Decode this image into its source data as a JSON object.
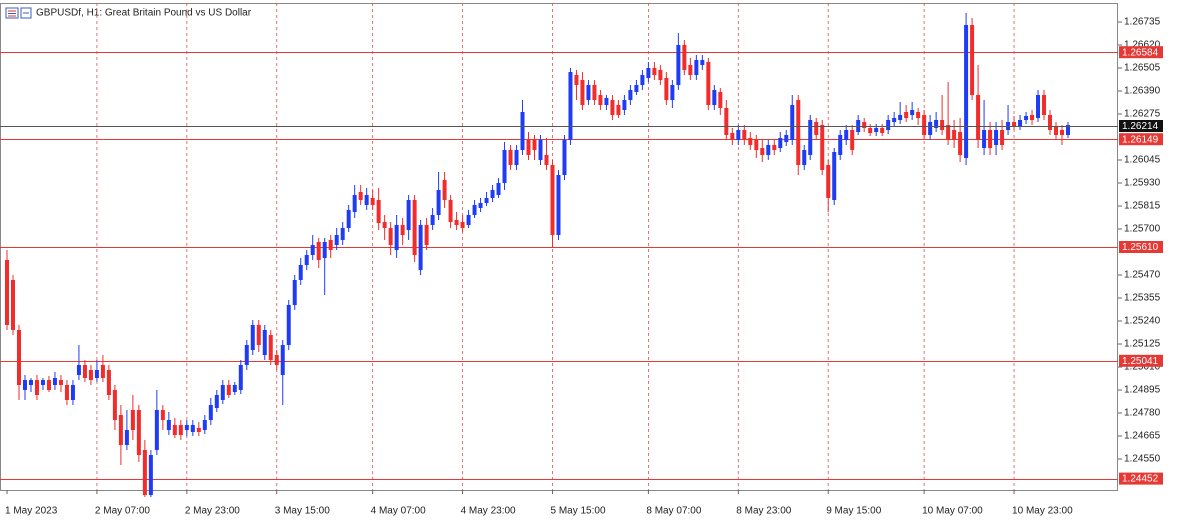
{
  "chart_data": {
    "type": "candlestick",
    "title": "GBPUSDf, H1:  Great Britain Pound vs US Dollar",
    "up_color": "#1f3cf5",
    "down_color": "#f22b2b",
    "level_color": "#e53935",
    "grid": true,
    "ylim": [
      1.24395,
      1.2683
    ],
    "yticks": [
      1.26735,
      {
        "value": 1.2662,
        "label": "1.26620"
      },
      1.26505,
      {
        "value": 1.2639,
        "label": "1.26390"
      },
      1.26275,
      1.26045,
      {
        "value": 1.2593,
        "label": "1.25930"
      },
      1.25815,
      {
        "value": 1.257,
        "label": "1.25700"
      },
      {
        "value": 1.2547,
        "label": "1.25470"
      },
      1.25355,
      {
        "value": 1.2524,
        "label": "1.25240"
      },
      1.25125,
      {
        "value": 1.2501,
        "label": "1.25010"
      },
      1.24895,
      {
        "value": 1.2478,
        "label": "1.24780"
      },
      1.24665,
      {
        "value": 1.2455,
        "label": "1.24550"
      }
    ],
    "levels": [
      1.26584,
      1.26149,
      {
        "value": 1.2561,
        "label": "1.25610"
      },
      1.25041,
      1.24452
    ],
    "last_price": 1.26214,
    "categories": [
      "1 May 2023",
      null,
      null,
      null,
      null,
      null,
      null,
      null,
      null,
      null,
      null,
      null,
      null,
      null,
      null,
      "2 May 07:00",
      null,
      null,
      null,
      null,
      null,
      null,
      null,
      null,
      null,
      null,
      null,
      null,
      null,
      null,
      "2 May 23:00",
      null,
      null,
      null,
      null,
      null,
      null,
      null,
      null,
      null,
      null,
      null,
      null,
      null,
      null,
      "3 May 15:00",
      null,
      null,
      null,
      null,
      null,
      null,
      null,
      null,
      null,
      null,
      null,
      null,
      null,
      null,
      null,
      "4 May 07:00",
      null,
      null,
      null,
      null,
      null,
      null,
      null,
      null,
      null,
      null,
      null,
      null,
      null,
      null,
      "4 May 23:00",
      null,
      null,
      null,
      null,
      null,
      null,
      null,
      null,
      null,
      null,
      null,
      null,
      null,
      null,
      "5 May 15:00",
      null,
      null,
      null,
      null,
      null,
      null,
      null,
      null,
      null,
      null,
      null,
      null,
      null,
      null,
      null,
      "8 May 07:00",
      null,
      null,
      null,
      null,
      null,
      null,
      null,
      null,
      null,
      null,
      null,
      null,
      null,
      null,
      "8 May 23:00",
      null,
      null,
      null,
      null,
      null,
      null,
      null,
      null,
      null,
      null,
      null,
      null,
      null,
      null,
      "9 May 15:00",
      null,
      null,
      null,
      null,
      null,
      null,
      null,
      null,
      null,
      null,
      null,
      null,
      null,
      null,
      null,
      "10 May 07:00",
      null,
      null,
      null,
      null,
      null,
      null,
      null,
      null,
      null,
      null,
      null,
      null,
      null,
      null,
      "10 May 23:00",
      null,
      null,
      null,
      null,
      null,
      null,
      null,
      null,
      null
    ],
    "values": [
      [
        1.25545,
        1.25595,
        1.25195,
        1.2522
      ],
      [
        1.25445,
        1.2547,
        1.2517,
        1.25195
      ],
      [
        1.25195,
        1.2522,
        1.24845,
        1.2492
      ],
      [
        1.24895,
        1.2497,
        1.24845,
        1.24945
      ],
      [
        1.2492,
        1.24955,
        1.24885,
        1.24945
      ],
      [
        1.24945,
        1.2497,
        1.24845,
        1.2487
      ],
      [
        1.2492,
        1.24955,
        1.24895,
        1.24945
      ],
      [
        1.24945,
        1.24965,
        1.24885,
        1.24895
      ],
      [
        1.2492,
        1.24985,
        1.24895,
        1.24955
      ],
      [
        1.24945,
        1.2497,
        1.24885,
        1.2492
      ],
      [
        1.2492,
        1.24945,
        1.2482,
        1.24845
      ],
      [
        1.24845,
        1.24945,
        1.2482,
        1.2492
      ],
      [
        1.2497,
        1.2512,
        1.24945,
        1.2502
      ],
      [
        1.2502,
        1.25045,
        1.24935,
        1.24955
      ],
      [
        1.24995,
        1.2502,
        1.2492,
        1.24945
      ],
      [
        1.24955,
        1.25045,
        1.24935,
        1.24995
      ],
      [
        1.2502,
        1.2507,
        1.24935,
        1.24955
      ],
      [
        1.24995,
        1.2502,
        1.24845,
        1.2487
      ],
      [
        1.24895,
        1.2492,
        1.24695,
        1.24745
      ],
      [
        1.2477,
        1.2482,
        1.2452,
        1.2462
      ],
      [
        1.2462,
        1.24795,
        1.24595,
        1.24695
      ],
      [
        1.24795,
        1.2487,
        1.24645,
        1.24695
      ],
      [
        1.24795,
        1.2482,
        1.24535,
        1.2457
      ],
      [
        1.24595,
        1.24645,
        1.2436,
        1.2437
      ],
      [
        1.2437,
        1.24595,
        1.2436,
        1.2457
      ],
      [
        1.24595,
        1.24895,
        1.2457,
        1.24795
      ],
      [
        1.24795,
        1.2482,
        1.24695,
        1.24745
      ],
      [
        1.24695,
        1.24785,
        1.2467,
        1.24745
      ],
      [
        1.2472,
        1.24755,
        1.24655,
        1.2467
      ],
      [
        1.2472,
        1.24745,
        1.24645,
        1.2467
      ],
      [
        1.24695,
        1.24745,
        1.24665,
        1.2472
      ],
      [
        1.24685,
        1.24745,
        1.24665,
        1.2472
      ],
      [
        1.24705,
        1.24735,
        1.24665,
        1.24685
      ],
      [
        1.24695,
        1.2477,
        1.24675,
        1.24745
      ],
      [
        1.24745,
        1.24855,
        1.2472,
        1.2482
      ],
      [
        1.24805,
        1.24895,
        1.24785,
        1.2487
      ],
      [
        1.24845,
        1.24945,
        1.24825,
        1.2492
      ],
      [
        1.2492,
        1.24945,
        1.24855,
        1.2487
      ],
      [
        1.24885,
        1.24935,
        1.2487,
        1.2492
      ],
      [
        1.24895,
        1.25045,
        1.24875,
        1.2502
      ],
      [
        1.2502,
        1.25145,
        1.24995,
        1.2512
      ],
      [
        1.25095,
        1.25245,
        1.2507,
        1.2522
      ],
      [
        1.2522,
        1.25245,
        1.25085,
        1.2512
      ],
      [
        1.2507,
        1.2522,
        1.25045,
        1.25195
      ],
      [
        1.2517,
        1.25195,
        1.2502,
        1.25045
      ],
      [
        1.2507,
        1.25095,
        1.24995,
        1.2502
      ],
      [
        1.2497,
        1.25145,
        1.2482,
        1.2512
      ],
      [
        1.2512,
        1.25345,
        1.25095,
        1.2532
      ],
      [
        1.2532,
        1.2547,
        1.25295,
        1.25445
      ],
      [
        1.25445,
        1.25555,
        1.2542,
        1.2552
      ],
      [
        1.2552,
        1.25595,
        1.25495,
        1.2557
      ],
      [
        1.2557,
        1.2567,
        1.25545,
        1.2562
      ],
      [
        1.25635,
        1.25655,
        1.25505,
        1.25545
      ],
      [
        1.25555,
        1.25655,
        1.2537,
        1.25635
      ],
      [
        1.25645,
        1.2567,
        1.25555,
        1.25595
      ],
      [
        1.2562,
        1.25705,
        1.25595,
        1.2567
      ],
      [
        1.25645,
        1.25735,
        1.2562,
        1.25705
      ],
      [
        1.25705,
        1.2582,
        1.25685,
        1.25795
      ],
      [
        1.25785,
        1.2592,
        1.25755,
        1.2587
      ],
      [
        1.25885,
        1.2592,
        1.2582,
        1.25845
      ],
      [
        1.2582,
        1.25905,
        1.25795,
        1.2587
      ],
      [
        1.25855,
        1.25895,
        1.25795,
        1.2582
      ],
      [
        1.25845,
        1.25905,
        1.25695,
        1.2573
      ],
      [
        1.25735,
        1.2577,
        1.25645,
        1.25705
      ],
      [
        1.25705,
        1.25735,
        1.2557,
        1.2562
      ],
      [
        1.25595,
        1.2577,
        1.25555,
        1.2572
      ],
      [
        1.2572,
        1.25755,
        1.2562,
        1.2567
      ],
      [
        1.25695,
        1.2587,
        1.25645,
        1.25845
      ],
      [
        1.25845,
        1.2587,
        1.25535,
        1.2557
      ],
      [
        1.25495,
        1.25745,
        1.2547,
        1.2572
      ],
      [
        1.2572,
        1.25755,
        1.25595,
        1.2562
      ],
      [
        1.2572,
        1.25805,
        1.25695,
        1.2577
      ],
      [
        1.2577,
        1.25985,
        1.25745,
        1.25895
      ],
      [
        1.25945,
        1.25985,
        1.25805,
        1.25845
      ],
      [
        1.25845,
        1.2587,
        1.25705,
        1.25735
      ],
      [
        1.25745,
        1.25785,
        1.25695,
        1.2572
      ],
      [
        1.25735,
        1.2577,
        1.25685,
        1.25705
      ],
      [
        1.2572,
        1.25795,
        1.25705,
        1.2577
      ],
      [
        1.2577,
        1.25845,
        1.25755,
        1.2582
      ],
      [
        1.25805,
        1.25855,
        1.25785,
        1.2583
      ],
      [
        1.2583,
        1.25885,
        1.25815,
        1.25855
      ],
      [
        1.25855,
        1.2592,
        1.25835,
        1.25895
      ],
      [
        1.2587,
        1.25955,
        1.25855,
        1.2593
      ],
      [
        1.2593,
        1.26135,
        1.25895,
        1.26095
      ],
      [
        1.26095,
        1.2612,
        1.25995,
        1.2602
      ],
      [
        1.2602,
        1.2612,
        1.25995,
        1.26095
      ],
      [
        1.26095,
        1.26345,
        1.2607,
        1.26285
      ],
      [
        1.26145,
        1.26185,
        1.26045,
        1.2607
      ],
      [
        1.26145,
        1.2617,
        1.26045,
        1.26095
      ],
      [
        1.26045,
        1.2617,
        1.2602,
        1.26145
      ],
      [
        1.2607,
        1.26155,
        1.25995,
        1.2602
      ],
      [
        1.2602,
        1.26045,
        1.25605,
        1.2567
      ],
      [
        1.2567,
        1.25995,
        1.25645,
        1.2597
      ],
      [
        1.2597,
        1.2617,
        1.25945,
        1.26145
      ],
      [
        1.26145,
        1.26505,
        1.2612,
        1.26485
      ],
      [
        1.2647,
        1.26495,
        1.26345,
        1.2642
      ],
      [
        1.26445,
        1.26485,
        1.26295,
        1.2632
      ],
      [
        1.26345,
        1.26445,
        1.2632,
        1.2642
      ],
      [
        1.2642,
        1.26445,
        1.2632,
        1.26345
      ],
      [
        1.2637,
        1.26395,
        1.26295,
        1.2632
      ],
      [
        1.2632,
        1.2637,
        1.26295,
        1.26355
      ],
      [
        1.26345,
        1.2637,
        1.26245,
        1.2627
      ],
      [
        1.2632,
        1.26345,
        1.26255,
        1.2627
      ],
      [
        1.26295,
        1.2637,
        1.2627,
        1.26345
      ],
      [
        1.26345,
        1.2642,
        1.2632,
        1.26395
      ],
      [
        1.26385,
        1.26445,
        1.2637,
        1.2642
      ],
      [
        1.2642,
        1.26495,
        1.26395,
        1.2647
      ],
      [
        1.26455,
        1.26535,
        1.26435,
        1.26505
      ],
      [
        1.26505,
        1.26535,
        1.26445,
        1.2647
      ],
      [
        1.26495,
        1.2652,
        1.2642,
        1.26445
      ],
      [
        1.26455,
        1.26485,
        1.2632,
        1.26345
      ],
      [
        1.26345,
        1.26445,
        1.26305,
        1.2642
      ],
      [
        1.2642,
        1.2668,
        1.26395,
        1.2662
      ],
      [
        1.2662,
        1.26645,
        1.2647,
        1.26495
      ],
      [
        1.2652,
        1.26555,
        1.26445,
        1.2647
      ],
      [
        1.2647,
        1.2657,
        1.26445,
        1.26545
      ],
      [
        1.2652,
        1.2657,
        1.26495,
        1.26545
      ],
      [
        1.26535,
        1.26555,
        1.26295,
        1.2632
      ],
      [
        1.2632,
        1.2642,
        1.26295,
        1.26395
      ],
      [
        1.26385,
        1.26405,
        1.2627,
        1.26305
      ],
      [
        1.26305,
        1.26345,
        1.26145,
        1.2617
      ],
      [
        1.2618,
        1.26205,
        1.2612,
        1.26145
      ],
      [
        1.26145,
        1.2622,
        1.2612,
        1.26195
      ],
      [
        1.26195,
        1.2622,
        1.2612,
        1.26145
      ],
      [
        1.26155,
        1.26185,
        1.26095,
        1.2612
      ],
      [
        1.26145,
        1.2617,
        1.26055,
        1.26095
      ],
      [
        1.26105,
        1.26145,
        1.26035,
        1.2607
      ],
      [
        1.2607,
        1.26145,
        1.26045,
        1.2612
      ],
      [
        1.2612,
        1.26145,
        1.2607,
        1.26095
      ],
      [
        1.26105,
        1.26185,
        1.26085,
        1.26155
      ],
      [
        1.26135,
        1.26195,
        1.26115,
        1.2617
      ],
      [
        1.26145,
        1.2637,
        1.2612,
        1.2632
      ],
      [
        1.26345,
        1.2637,
        1.2597,
        1.2602
      ],
      [
        1.2602,
        1.2612,
        1.25995,
        1.26095
      ],
      [
        1.2607,
        1.2627,
        1.26045,
        1.26245
      ],
      [
        1.26235,
        1.26255,
        1.26145,
        1.2617
      ],
      [
        1.2622,
        1.26245,
        1.2597,
        1.25995
      ],
      [
        1.2602,
        1.26045,
        1.25785,
        1.25855
      ],
      [
        1.25845,
        1.26105,
        1.2582,
        1.26085
      ],
      [
        1.2607,
        1.26195,
        1.26045,
        1.2617
      ],
      [
        1.26145,
        1.2622,
        1.2612,
        1.26195
      ],
      [
        1.26195,
        1.2622,
        1.2607,
        1.26095
      ],
      [
        1.26185,
        1.2627,
        1.2617,
        1.26245
      ],
      [
        1.26235,
        1.26255,
        1.26185,
        1.26205
      ],
      [
        1.26205,
        1.26225,
        1.26165,
        1.2618
      ],
      [
        1.26185,
        1.26225,
        1.26165,
        1.26205
      ],
      [
        1.26205,
        1.26225,
        1.26165,
        1.2618
      ],
      [
        1.26195,
        1.2627,
        1.26175,
        1.26245
      ],
      [
        1.26235,
        1.26285,
        1.26215,
        1.26255
      ],
      [
        1.26245,
        1.26335,
        1.26225,
        1.2627
      ],
      [
        1.26285,
        1.2632,
        1.26235,
        1.26255
      ],
      [
        1.2627,
        1.26335,
        1.26245,
        1.26295
      ],
      [
        1.26285,
        1.26305,
        1.2622,
        1.26255
      ],
      [
        1.2627,
        1.26295,
        1.26145,
        1.2617
      ],
      [
        1.2617,
        1.2627,
        1.26145,
        1.26235
      ],
      [
        1.26205,
        1.26285,
        1.26185,
        1.26245
      ],
      [
        1.26245,
        1.2637,
        1.2617,
        1.26195
      ],
      [
        1.2622,
        1.26435,
        1.2612,
        1.26145
      ],
      [
        1.26195,
        1.26245,
        1.26105,
        1.26145
      ],
      [
        1.26185,
        1.26255,
        1.26035,
        1.2607
      ],
      [
        1.26055,
        1.2678,
        1.2602,
        1.2672
      ],
      [
        1.2672,
        1.26755,
        1.26345,
        1.2637
      ],
      [
        1.2637,
        1.2652,
        1.26105,
        1.26145
      ],
      [
        1.26105,
        1.26345,
        1.2607,
        1.26195
      ],
      [
        1.26195,
        1.26235,
        1.2607,
        1.26105
      ],
      [
        1.2612,
        1.26235,
        1.2607,
        1.26195
      ],
      [
        1.26195,
        1.26245,
        1.26095,
        1.2612
      ],
      [
        1.26195,
        1.2632,
        1.2617,
        1.26235
      ],
      [
        1.26235,
        1.26265,
        1.26195,
        1.26215
      ],
      [
        1.26215,
        1.2627,
        1.26195,
        1.26245
      ],
      [
        1.26245,
        1.26285,
        1.26225,
        1.26265
      ],
      [
        1.2627,
        1.26295,
        1.2622,
        1.26245
      ],
      [
        1.26255,
        1.26395,
        1.26235,
        1.2637
      ],
      [
        1.2637,
        1.26395,
        1.26245,
        1.2627
      ],
      [
        1.2627,
        1.26295,
        1.2617,
        1.26195
      ],
      [
        1.2621,
        1.26235,
        1.26145,
        1.2617
      ],
      [
        1.26195,
        1.2622,
        1.2612,
        1.2617
      ],
      [
        1.2617,
        1.26235,
        1.26155,
        1.2622
      ]
    ]
  }
}
